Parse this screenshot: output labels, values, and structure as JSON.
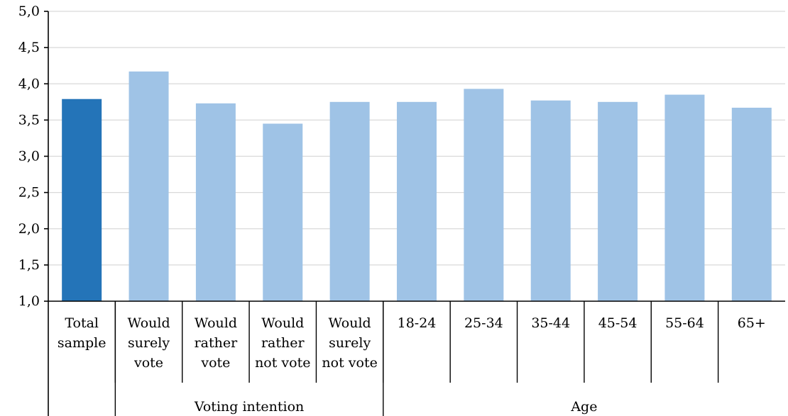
{
  "chart_data": {
    "type": "bar",
    "title": "",
    "xlabel": "",
    "ylabel": "",
    "ylim": [
      1.0,
      5.0
    ],
    "yticks": [
      "1,0",
      "1,5",
      "2,0",
      "2,5",
      "3,0",
      "3,5",
      "4,0",
      "4,5",
      "5,0"
    ],
    "grid": true,
    "categories": [
      [
        "Total",
        "sample"
      ],
      [
        "Would",
        "surely",
        "vote"
      ],
      [
        "Would",
        "rather",
        "vote"
      ],
      [
        "Would",
        "rather",
        "not vote"
      ],
      [
        "Would",
        "surely",
        "not vote"
      ],
      [
        "18-24"
      ],
      [
        "25-34"
      ],
      [
        "35-44"
      ],
      [
        "45-54"
      ],
      [
        "55-64"
      ],
      [
        "65+"
      ]
    ],
    "values": [
      3.79,
      4.17,
      3.73,
      3.45,
      3.75,
      3.75,
      3.93,
      3.77,
      3.75,
      3.85,
      3.67
    ],
    "groups": [
      {
        "label": "",
        "start": 0,
        "end": 0
      },
      {
        "label": "Voting intention",
        "start": 1,
        "end": 4
      },
      {
        "label": "Age",
        "start": 5,
        "end": 10
      }
    ],
    "colors": {
      "highlight": "#2474b8",
      "bar": "#9fc3e6"
    },
    "highlight_index": 0
  }
}
